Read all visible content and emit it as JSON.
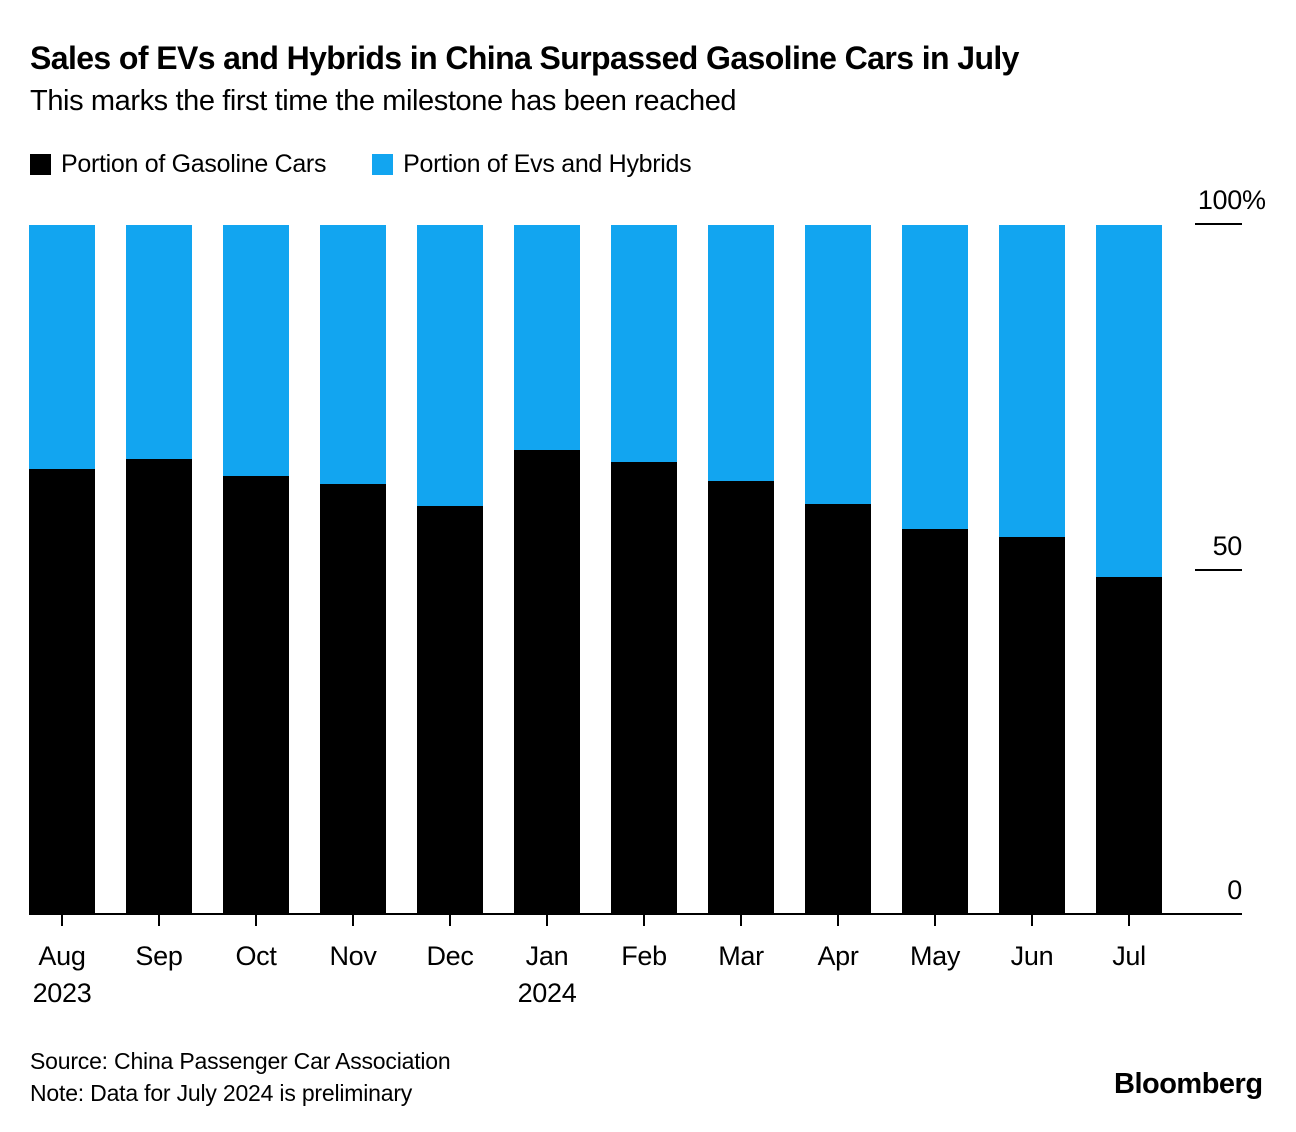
{
  "header": {
    "title": "Sales of EVs and Hybrids in China Surpassed Gasoline Cars in July",
    "subtitle": "This marks the first time the milestone has been reached"
  },
  "legend": {
    "items": [
      {
        "label": "Portion of Gasoline Cars",
        "color": "#000000"
      },
      {
        "label": "Portion of Evs and Hybrids",
        "color": "#12a5f0"
      }
    ]
  },
  "colors": {
    "gasoline_black": "#000000",
    "ev_blue": "#12a5f0",
    "axis": "#000000",
    "background": "#ffffff"
  },
  "chart_data": {
    "type": "bar",
    "stacked": true,
    "title": "Sales of EVs and Hybrids in China Surpassed Gasoline Cars in July",
    "subtitle": "This marks the first time the milestone has been reached",
    "categories": [
      "Aug 2023",
      "Sep",
      "Oct",
      "Nov",
      "Dec",
      "Jan 2024",
      "Feb",
      "Mar",
      "Apr",
      "May",
      "Jun",
      "Jul"
    ],
    "x_labels": [
      {
        "label": "Aug",
        "sub": "2023"
      },
      {
        "label": "Sep",
        "sub": ""
      },
      {
        "label": "Oct",
        "sub": ""
      },
      {
        "label": "Nov",
        "sub": ""
      },
      {
        "label": "Dec",
        "sub": ""
      },
      {
        "label": "Jan",
        "sub": "2024"
      },
      {
        "label": "Feb",
        "sub": ""
      },
      {
        "label": "Mar",
        "sub": ""
      },
      {
        "label": "Apr",
        "sub": ""
      },
      {
        "label": "May",
        "sub": ""
      },
      {
        "label": "Jun",
        "sub": ""
      },
      {
        "label": "Jul",
        "sub": ""
      }
    ],
    "series": [
      {
        "name": "Portion of Gasoline Cars",
        "color": "#000000",
        "values": [
          64.5,
          66.0,
          63.5,
          62.3,
          59.1,
          67.3,
          65.5,
          62.8,
          59.5,
          55.8,
          54.6,
          48.9
        ]
      },
      {
        "name": "Portion of Evs and Hybrids",
        "color": "#12a5f0",
        "values": [
          35.5,
          34.0,
          36.5,
          37.7,
          40.9,
          32.7,
          34.5,
          37.2,
          40.5,
          44.2,
          45.4,
          51.1
        ]
      }
    ],
    "xlabel": "",
    "ylabel": "",
    "ylim": [
      0,
      100
    ],
    "yticks": [
      0,
      50,
      100
    ],
    "unit": "%",
    "grid": false,
    "legend_position": "top-left"
  },
  "y_axis": {
    "label_100_number": "100",
    "label_100_suffix": "%",
    "label_50": "50",
    "label_0": "0"
  },
  "footer": {
    "source": "Source: China Passenger Car Association",
    "note": "Note: Data for July 2024 is preliminary",
    "brand": "Bloomberg"
  }
}
